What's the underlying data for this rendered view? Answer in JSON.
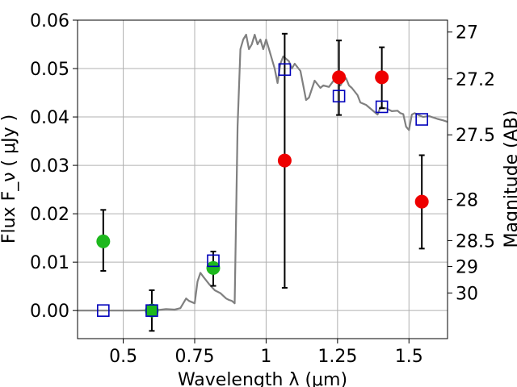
{
  "chart_data": {
    "type": "scatter",
    "xlabel": "Wavelength  λ (μm)",
    "ylabel": "Flux  F_ν  ( μJy )",
    "ylabel_right": "Magnitude (AB)",
    "xlim": [
      0.34,
      1.635
    ],
    "ylim": [
      -0.0058,
      0.06
    ],
    "grid": true,
    "x_ticks": [
      {
        "value": 0.5,
        "label": "0.5"
      },
      {
        "value": 0.75,
        "label": "0.75"
      },
      {
        "value": 1.0,
        "label": "1"
      },
      {
        "value": 1.25,
        "label": "1.25"
      },
      {
        "value": 1.5,
        "label": "1.5"
      }
    ],
    "y_ticks": [
      {
        "value": 0.0,
        "label": "0.00"
      },
      {
        "value": 0.01,
        "label": "0.01"
      },
      {
        "value": 0.02,
        "label": "0.02"
      },
      {
        "value": 0.03,
        "label": "0.03"
      },
      {
        "value": 0.04,
        "label": "0.04"
      },
      {
        "value": 0.05,
        "label": "0.05"
      },
      {
        "value": 0.06,
        "label": "0.06"
      }
    ],
    "right_ticks": [
      {
        "mag": 27,
        "label": "27"
      },
      {
        "mag": 27.2,
        "label": "27.2"
      },
      {
        "mag": 27.5,
        "label": "27.5"
      },
      {
        "mag": 28,
        "label": "28"
      },
      {
        "mag": 28.5,
        "label": "28.5"
      },
      {
        "mag": 29,
        "label": "29"
      },
      {
        "mag": 30,
        "label": "30"
      }
    ],
    "colors": {
      "model": "#808080",
      "green": "#1db81d",
      "red": "#ee0000",
      "model_points": "#0000bb",
      "errorbar": "#000000",
      "grid": "#b0b0b0"
    },
    "series": [
      {
        "kind": "line",
        "x": [
          0.34,
          0.55,
          0.62,
          0.65,
          0.68,
          0.7,
          0.72,
          0.73,
          0.75,
          0.76,
          0.77,
          0.78,
          0.8,
          0.82,
          0.84,
          0.86,
          0.87,
          0.88,
          0.89,
          0.9,
          0.91,
          0.92,
          0.93,
          0.94,
          0.95,
          0.96,
          0.97,
          0.98,
          0.99,
          1.0,
          1.01,
          1.02,
          1.03,
          1.04,
          1.05,
          1.06,
          1.07,
          1.08,
          1.09,
          1.1,
          1.12,
          1.13,
          1.14,
          1.15,
          1.17,
          1.19,
          1.2,
          1.22,
          1.24,
          1.26,
          1.27,
          1.28,
          1.29,
          1.3,
          1.32,
          1.33,
          1.35,
          1.37,
          1.39,
          1.4,
          1.42,
          1.44,
          1.46,
          1.47,
          1.48,
          1.49,
          1.5,
          1.51,
          1.52,
          1.53,
          1.55,
          1.57,
          1.6,
          1.62,
          1.635
        ],
        "y": [
          0.0,
          0.0,
          0.0001,
          0.0003,
          0.0002,
          0.0005,
          0.0025,
          0.002,
          0.0015,
          0.006,
          0.0078,
          0.007,
          0.0055,
          0.0042,
          0.0036,
          0.0025,
          0.0022,
          0.002,
          0.0015,
          0.038,
          0.054,
          0.056,
          0.057,
          0.054,
          0.055,
          0.057,
          0.055,
          0.056,
          0.054,
          0.056,
          0.054,
          0.052,
          0.05,
          0.047,
          0.051,
          0.0525,
          0.052,
          0.0515,
          0.05,
          0.051,
          0.0495,
          0.0465,
          0.0435,
          0.044,
          0.0475,
          0.046,
          0.0465,
          0.0462,
          0.0478,
          0.0465,
          0.0475,
          0.048,
          0.0465,
          0.046,
          0.0445,
          0.043,
          0.0425,
          0.0415,
          0.0405,
          0.042,
          0.0418,
          0.0412,
          0.0413,
          0.0408,
          0.0406,
          0.038,
          0.0373,
          0.0405,
          0.0408,
          0.0405,
          0.04,
          0.0402,
          0.0396,
          0.0393,
          0.039
        ]
      },
      {
        "kind": "points",
        "marker": "circle",
        "color": "green",
        "x": [
          0.43,
          0.6,
          0.815
        ],
        "y": [
          0.0143,
          0.0,
          0.0088
        ],
        "yerr": [
          [
            0.0082,
            0.0208
          ],
          [
            -0.0042,
            0.0042
          ],
          [
            0.0051,
            0.0122
          ]
        ]
      },
      {
        "kind": "points",
        "marker": "circle",
        "color": "red",
        "x": [
          1.065,
          1.255,
          1.405,
          1.545
        ],
        "y": [
          0.031,
          0.0482,
          0.0482,
          0.0225
        ],
        "yerr": [
          [
            0.0047,
            0.0572
          ],
          [
            0.0404,
            0.0558
          ],
          [
            0.0418,
            0.0544
          ],
          [
            0.0128,
            0.0321
          ]
        ]
      },
      {
        "kind": "points",
        "marker": "square",
        "color": "model_points",
        "x": [
          0.43,
          0.6,
          0.815,
          1.065,
          1.255,
          1.405,
          1.545
        ],
        "y": [
          0.0,
          0.0,
          0.0103,
          0.0498,
          0.0443,
          0.0421,
          0.0395
        ]
      }
    ]
  }
}
